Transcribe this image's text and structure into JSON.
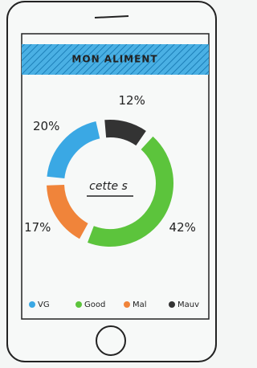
{
  "chart_data": {
    "type": "donut",
    "title": "MON ALIMENT",
    "center_label": "cette s",
    "categories": [
      "VG",
      "Good",
      "Mal",
      "Mauv"
    ],
    "values": [
      20,
      42,
      17,
      12
    ],
    "value_labels": [
      "20%",
      "42%",
      "17%",
      "12%"
    ],
    "colors": [
      "#3aa8e4",
      "#5cc43c",
      "#f0843a",
      "#333333"
    ],
    "legend": "bottom"
  }
}
